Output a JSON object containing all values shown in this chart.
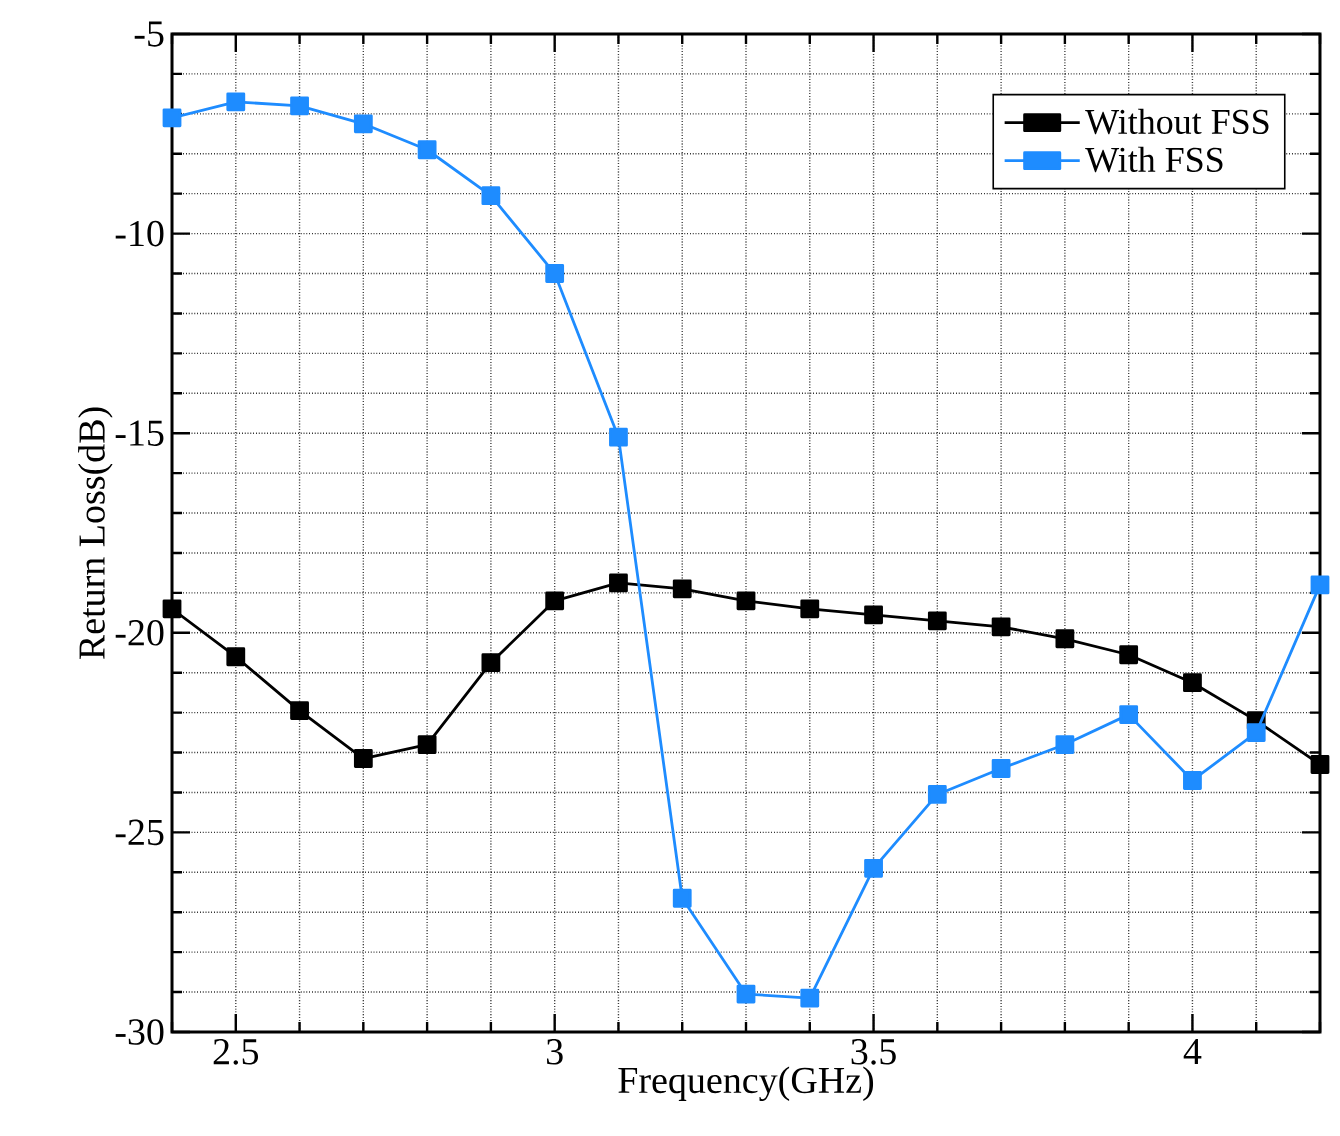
{
  "chart_data": {
    "type": "line",
    "xlabel": "Frequency(GHz)",
    "ylabel": "Return Loss(dB)",
    "x": [
      2.4,
      2.5,
      2.6,
      2.7,
      2.8,
      2.9,
      3.0,
      3.1,
      3.2,
      3.3,
      3.4,
      3.5,
      3.6,
      3.7,
      3.8,
      3.9,
      4.0,
      4.1,
      4.2
    ],
    "series": [
      {
        "name": "Without FSS",
        "color": "#000000",
        "values": [
          -19.4,
          -20.6,
          -21.95,
          -23.15,
          -22.8,
          -20.75,
          -19.2,
          -18.75,
          -18.9,
          -19.2,
          -19.4,
          -19.55,
          -19.7,
          -19.85,
          -20.15,
          -20.55,
          -21.25,
          -22.2,
          -23.3
        ]
      },
      {
        "name": "With FSS",
        "color": "#1e8cff",
        "values": [
          -7.1,
          -6.7,
          -6.8,
          -7.25,
          -7.9,
          -9.05,
          -11.0,
          -15.1,
          -26.65,
          -29.05,
          -29.15,
          -25.9,
          -24.05,
          -23.4,
          -22.8,
          -22.05,
          -23.7,
          -22.5,
          -18.8
        ]
      }
    ],
    "xlim": [
      2.4,
      4.2
    ],
    "ylim": [
      -30,
      -5
    ],
    "xticks": [
      {
        "value": 2.4,
        "label": null
      },
      2.5,
      {
        "value": 2.6,
        "label": null
      },
      {
        "value": 2.7,
        "label": null
      },
      {
        "value": 2.8,
        "label": null
      },
      {
        "value": 2.9,
        "label": null
      },
      3,
      {
        "value": 3.1,
        "label": null
      },
      {
        "value": 3.2,
        "label": null
      },
      {
        "value": 3.3,
        "label": null
      },
      {
        "value": 3.4,
        "label": null
      },
      3.5,
      {
        "value": 3.6,
        "label": null
      },
      {
        "value": 3.7,
        "label": null
      },
      {
        "value": 3.8,
        "label": null
      },
      {
        "value": 3.9,
        "label": null
      },
      4,
      {
        "value": 4.1,
        "label": null
      },
      {
        "value": 4.2,
        "label": null
      }
    ],
    "yticks": [
      -30,
      {
        "value": -29,
        "label": null
      },
      {
        "value": -28,
        "label": null
      },
      {
        "value": -27,
        "label": null
      },
      {
        "value": -26,
        "label": null
      },
      -25,
      {
        "value": -24,
        "label": null
      },
      {
        "value": -23,
        "label": null
      },
      {
        "value": -22,
        "label": null
      },
      {
        "value": -21,
        "label": null
      },
      -20,
      {
        "value": -19,
        "label": null
      },
      {
        "value": -18,
        "label": null
      },
      {
        "value": -17,
        "label": null
      },
      {
        "value": -16,
        "label": null
      },
      -15,
      {
        "value": -14,
        "label": null
      },
      {
        "value": -13,
        "label": null
      },
      {
        "value": -12,
        "label": null
      },
      {
        "value": -11,
        "label": null
      },
      -10,
      {
        "value": -9,
        "label": null
      },
      {
        "value": -8,
        "label": null
      },
      {
        "value": -7,
        "label": null
      },
      {
        "value": -6,
        "label": null
      },
      -5
    ],
    "grid": true,
    "legend": "top right",
    "marker": "square",
    "line_style": "solid"
  }
}
